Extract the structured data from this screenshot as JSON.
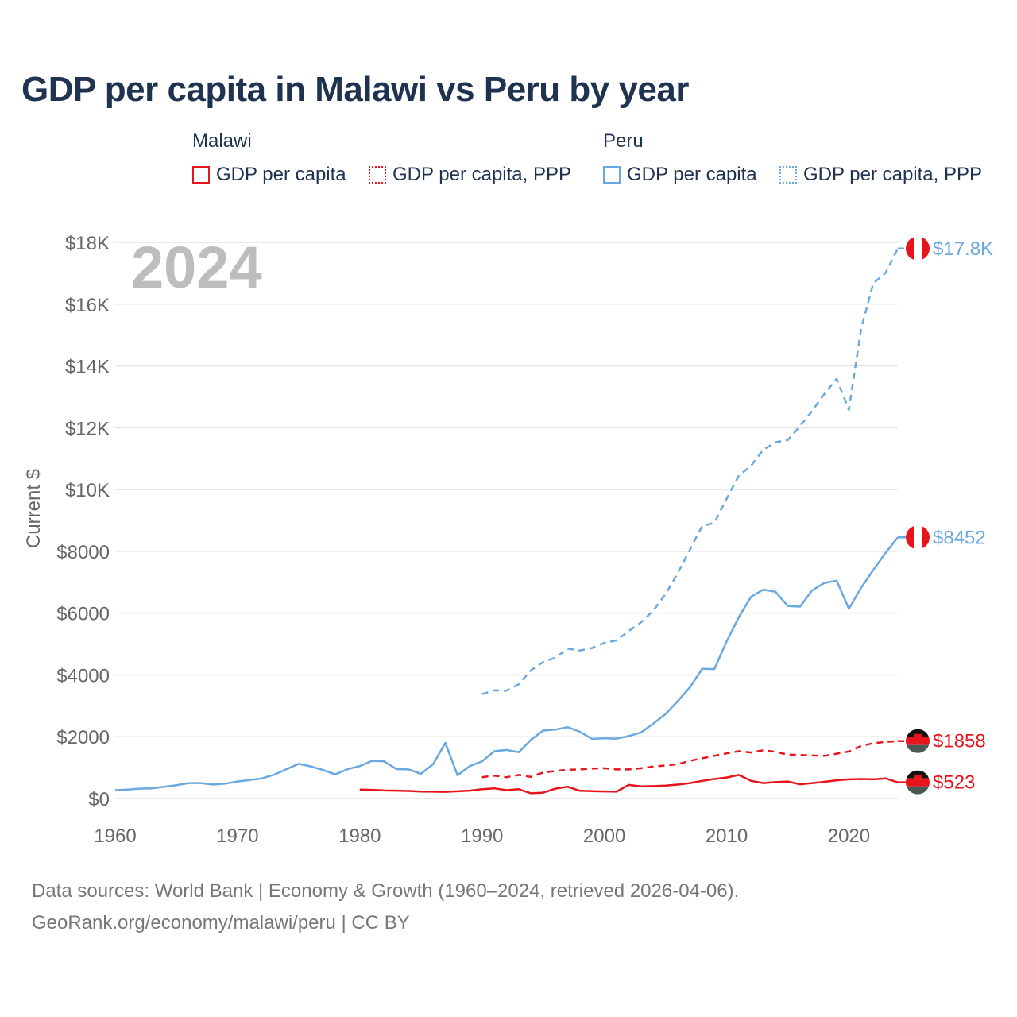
{
  "title": "GDP per capita in Malawi vs Peru by year",
  "legend": {
    "groups": [
      {
        "name": "Malawi",
        "color": "#e8141c",
        "items": [
          "GDP per capita",
          "GDP per capita, PPP"
        ]
      },
      {
        "name": "Peru",
        "color": "#6aa8e0",
        "items": [
          "GDP per capita",
          "GDP per capita, PPP"
        ]
      }
    ]
  },
  "year_watermark": "2024",
  "footer": {
    "line1": "Data sources: World Bank | Economy & Growth (1960–2024, retrieved 2026-04-06).",
    "line2": "GeoRank.org/economy/malawi/peru | CC BY"
  },
  "chart_data": {
    "type": "line",
    "title": "GDP per capita in Malawi vs Peru by year",
    "xlabel": "",
    "ylabel": "Current $",
    "xlim": [
      1960,
      2024
    ],
    "ylim": [
      0,
      18000
    ],
    "x_ticks": [
      1960,
      1970,
      1980,
      1990,
      2000,
      2010,
      2020
    ],
    "x_tick_labels": [
      "1960",
      "1970",
      "1980",
      "1990",
      "2000",
      "2010",
      "2020"
    ],
    "y_ticks": [
      0,
      2000,
      4000,
      6000,
      8000,
      10000,
      12000,
      14000,
      16000,
      18000
    ],
    "y_tick_labels": [
      "$0",
      "$2000",
      "$4000",
      "$6000",
      "$8000",
      "$10K",
      "$12K",
      "$14K",
      "$16K",
      "$18K"
    ],
    "grid": true,
    "series": [
      {
        "name": "Peru GDP per capita, PPP",
        "country": "Peru",
        "style": "dashed",
        "color": "#6aa8e0",
        "end_label": "$17.8K",
        "x": [
          1990,
          1991,
          1992,
          1993,
          1994,
          1995,
          1996,
          1997,
          1998,
          1999,
          2000,
          2001,
          2002,
          2003,
          2004,
          2005,
          2006,
          2007,
          2008,
          2009,
          2010,
          2011,
          2012,
          2013,
          2014,
          2015,
          2016,
          2017,
          2018,
          2019,
          2020,
          2021,
          2022,
          2023,
          2024
        ],
        "values": [
          3380,
          3500,
          3490,
          3700,
          4150,
          4420,
          4560,
          4850,
          4790,
          4870,
          5040,
          5120,
          5420,
          5700,
          6080,
          6610,
          7290,
          8060,
          8820,
          8920,
          9700,
          10450,
          10770,
          11290,
          11530,
          11600,
          12050,
          12550,
          13100,
          13580,
          12580,
          15200,
          16680,
          17010,
          17800
        ]
      },
      {
        "name": "Peru GDP per capita",
        "country": "Peru",
        "style": "solid",
        "color": "#6aa8e0",
        "end_label": "$8452",
        "x": [
          1960,
          1961,
          1962,
          1963,
          1964,
          1965,
          1966,
          1967,
          1968,
          1969,
          1970,
          1971,
          1972,
          1973,
          1974,
          1975,
          1976,
          1977,
          1978,
          1979,
          1980,
          1981,
          1982,
          1983,
          1984,
          1985,
          1986,
          1987,
          1988,
          1989,
          1990,
          1991,
          1992,
          1993,
          1994,
          1995,
          1996,
          1997,
          1998,
          1999,
          2000,
          2001,
          2002,
          2003,
          2004,
          2005,
          2006,
          2007,
          2008,
          2009,
          2010,
          2011,
          2012,
          2013,
          2014,
          2015,
          2016,
          2017,
          2018,
          2019,
          2020,
          2021,
          2022,
          2023,
          2024
        ],
        "values": [
          270,
          290,
          320,
          330,
          380,
          430,
          500,
          500,
          450,
          480,
          550,
          600,
          650,
          770,
          950,
          1120,
          1040,
          920,
          780,
          950,
          1050,
          1220,
          1200,
          950,
          940,
          800,
          1110,
          1800,
          750,
          1050,
          1200,
          1530,
          1570,
          1500,
          1900,
          2200,
          2230,
          2310,
          2160,
          1930,
          1950,
          1940,
          2020,
          2140,
          2420,
          2730,
          3150,
          3600,
          4200,
          4190,
          5080,
          5870,
          6530,
          6760,
          6690,
          6230,
          6210,
          6740,
          6980,
          7050,
          6140,
          6820,
          7400,
          7950,
          8452
        ]
      },
      {
        "name": "Malawi GDP per capita, PPP",
        "country": "Malawi",
        "style": "dashed",
        "color": "#e8141c",
        "end_label": "$1858",
        "x": [
          1990,
          1991,
          1992,
          1993,
          1994,
          1995,
          1996,
          1997,
          1998,
          1999,
          2000,
          2001,
          2002,
          2003,
          2004,
          2005,
          2006,
          2007,
          2008,
          2009,
          2010,
          2011,
          2012,
          2013,
          2014,
          2015,
          2016,
          2017,
          2018,
          2019,
          2020,
          2021,
          2022,
          2023,
          2024
        ],
        "values": [
          690,
          740,
          690,
          760,
          700,
          840,
          890,
          930,
          940,
          970,
          980,
          940,
          940,
          980,
          1030,
          1070,
          1110,
          1220,
          1300,
          1380,
          1460,
          1530,
          1490,
          1560,
          1510,
          1420,
          1410,
          1390,
          1380,
          1450,
          1520,
          1700,
          1790,
          1830,
          1858
        ]
      },
      {
        "name": "Malawi GDP per capita",
        "country": "Malawi",
        "style": "solid",
        "color": "#e8141c",
        "end_label": "$523",
        "x": [
          1980,
          1981,
          1982,
          1983,
          1984,
          1985,
          1986,
          1987,
          1988,
          1989,
          1990,
          1991,
          1992,
          1993,
          1994,
          1995,
          1996,
          1997,
          1998,
          1999,
          2000,
          2001,
          2002,
          2003,
          2004,
          2005,
          2006,
          2007,
          2008,
          2009,
          2010,
          2011,
          2012,
          2013,
          2014,
          2015,
          2016,
          2017,
          2018,
          2019,
          2020,
          2021,
          2022,
          2023,
          2024
        ],
        "values": [
          290,
          280,
          260,
          255,
          245,
          225,
          220,
          215,
          235,
          255,
          300,
          330,
          270,
          300,
          170,
          190,
          320,
          380,
          250,
          240,
          230,
          220,
          440,
          390,
          400,
          420,
          450,
          500,
          570,
          630,
          680,
          760,
          570,
          500,
          530,
          550,
          460,
          500,
          540,
          590,
          620,
          630,
          620,
          650,
          523
        ]
      }
    ]
  }
}
